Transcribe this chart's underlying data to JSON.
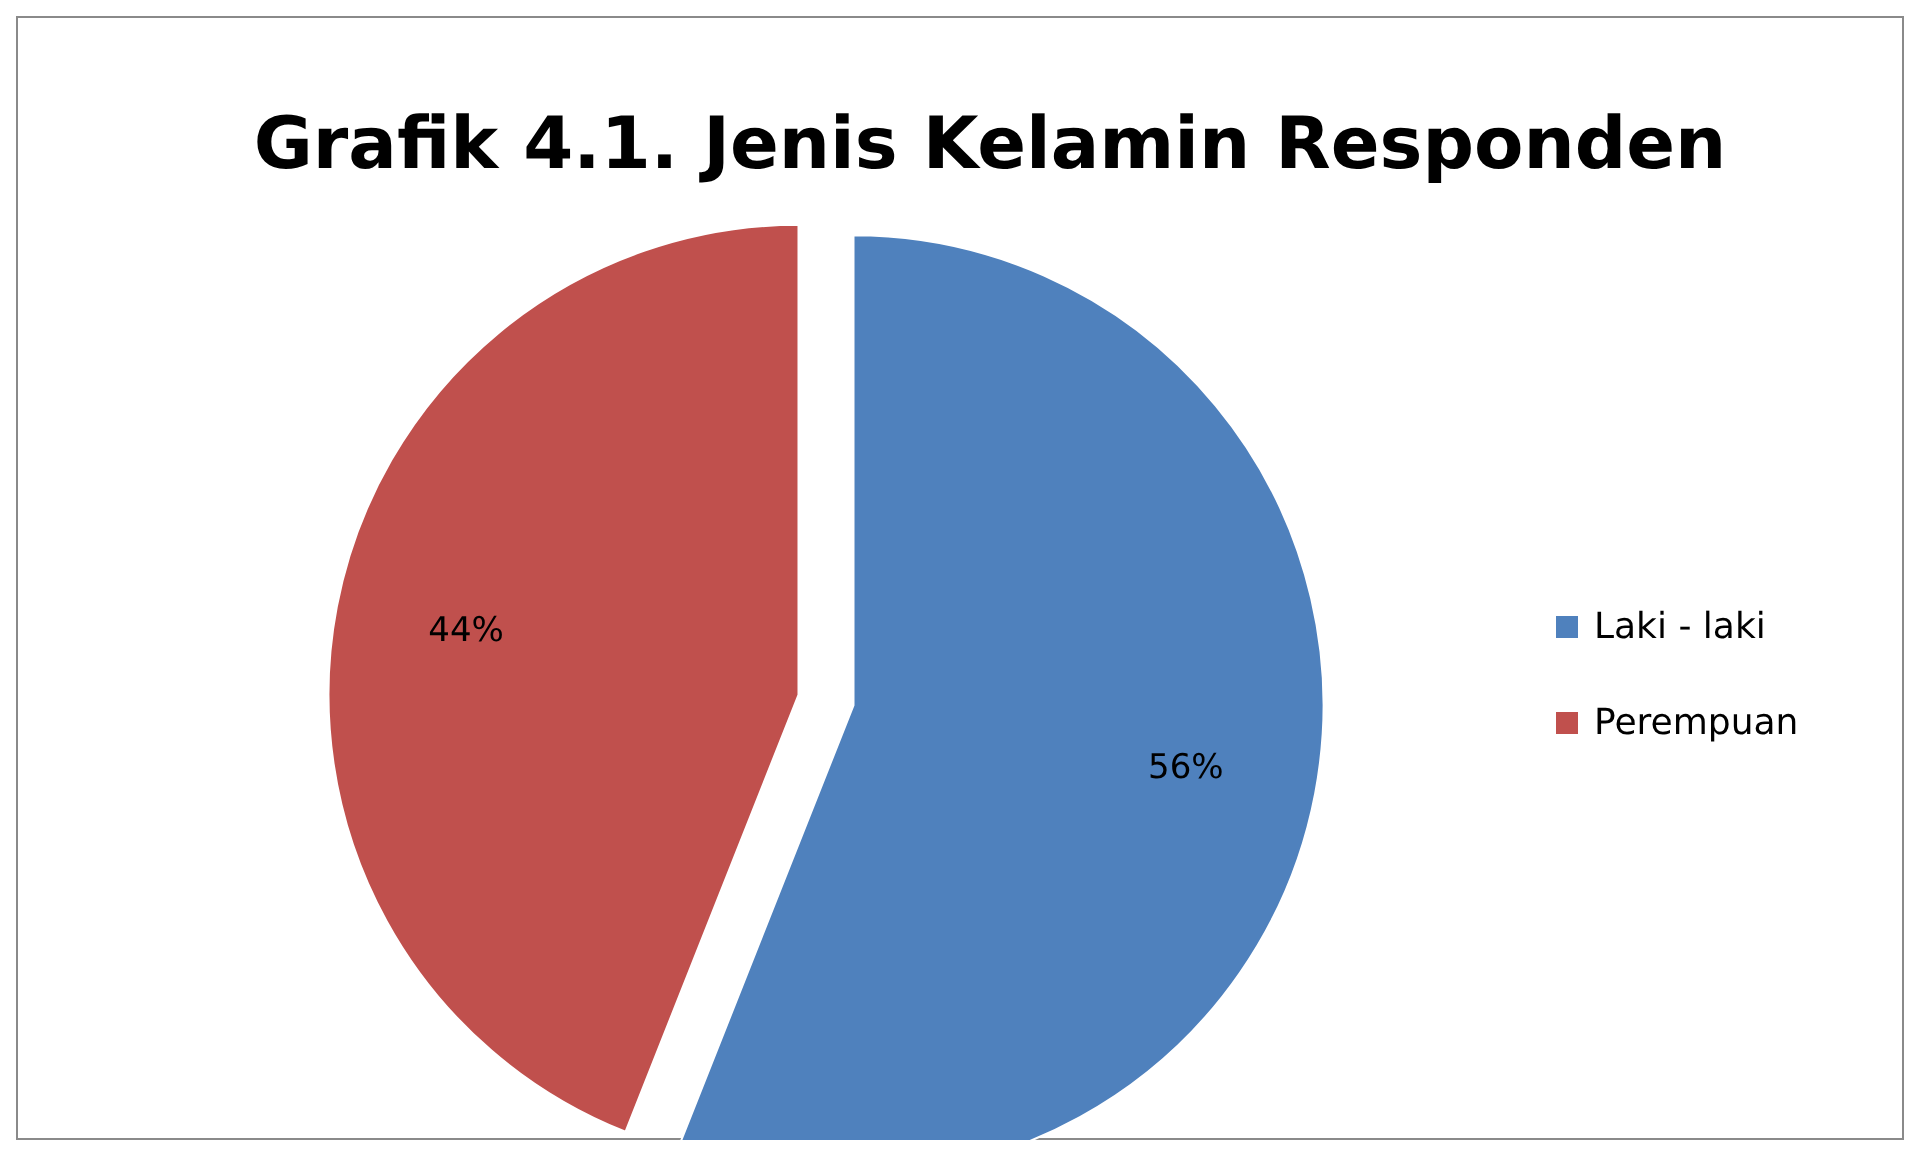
{
  "chart_data": {
    "type": "pie",
    "title": "Grafik 4.1. Jenis Kelamin Responden",
    "categories": [
      "Laki - laki",
      "Perempuan"
    ],
    "values": [
      56,
      44
    ],
    "colors": [
      "#4f81bd",
      "#c0504d"
    ],
    "value_labels": [
      "56%",
      "44%"
    ],
    "legend": "right"
  }
}
